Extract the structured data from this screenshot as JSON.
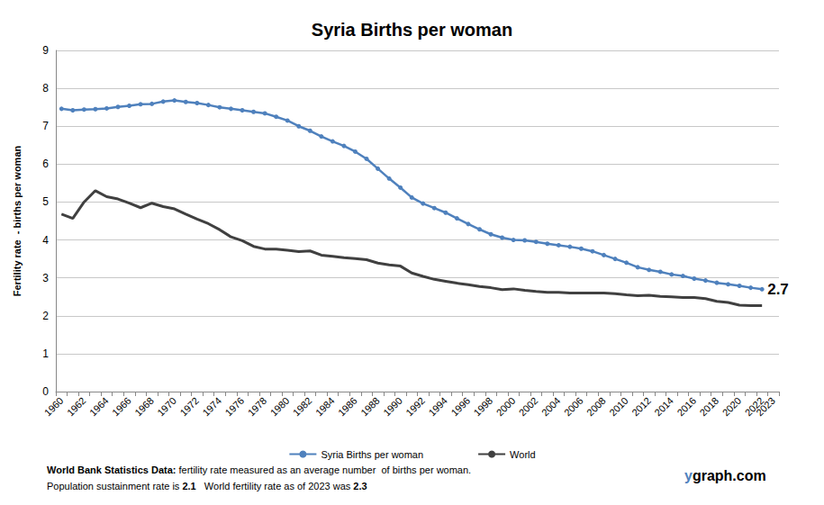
{
  "chart_data": {
    "type": "line",
    "title": "Syria Births per woman",
    "y_label": "Fertility rate  - births per woman",
    "categories": [
      "1960",
      null,
      "1962",
      null,
      "1964",
      null,
      "1966",
      null,
      "1968",
      null,
      "1970",
      null,
      "1972",
      null,
      "1974",
      null,
      "1976",
      null,
      "1978",
      null,
      "1980",
      null,
      "1982",
      null,
      "1984",
      null,
      "1986",
      null,
      "1988",
      null,
      "1990",
      null,
      "1992",
      null,
      "1994",
      null,
      "1996",
      null,
      "1998",
      null,
      "2000",
      null,
      "2002",
      null,
      "2004",
      null,
      "2006",
      null,
      "2008",
      null,
      "2010",
      null,
      "2012",
      null,
      "2014",
      null,
      "2016",
      null,
      "2018",
      null,
      "2020",
      null,
      "2022",
      "2023"
    ],
    "series": [
      {
        "name": "Syria Births per woman",
        "color": "#4F81BD",
        "marker": "circle",
        "line_style": "solid",
        "values": [
          7.46,
          7.42,
          7.44,
          7.45,
          7.47,
          7.51,
          7.54,
          7.58,
          7.59,
          7.65,
          7.68,
          7.64,
          7.61,
          7.56,
          7.5,
          7.46,
          7.42,
          7.38,
          7.34,
          7.25,
          7.15,
          7.0,
          6.88,
          6.73,
          6.6,
          6.48,
          6.33,
          6.14,
          5.88,
          5.62,
          5.38,
          5.12,
          4.96,
          4.84,
          4.72,
          4.57,
          4.42,
          4.28,
          4.15,
          4.06,
          4.0,
          3.99,
          3.95,
          3.9,
          3.86,
          3.82,
          3.77,
          3.7,
          3.6,
          3.5,
          3.4,
          3.28,
          3.21,
          3.16,
          3.09,
          3.05,
          2.98,
          2.93,
          2.87,
          2.83,
          2.79,
          2.74,
          2.7,
          null
        ]
      },
      {
        "name": "World",
        "color": "#404040",
        "marker": "none",
        "line_style": "solid",
        "values": [
          4.68,
          4.57,
          5.0,
          5.3,
          5.14,
          5.08,
          4.97,
          4.85,
          4.97,
          4.88,
          4.82,
          4.68,
          4.55,
          4.43,
          4.27,
          4.08,
          3.98,
          3.83,
          3.76,
          3.76,
          3.73,
          3.69,
          3.71,
          3.6,
          3.57,
          3.53,
          3.51,
          3.48,
          3.39,
          3.34,
          3.31,
          3.13,
          3.04,
          2.96,
          2.91,
          2.86,
          2.82,
          2.77,
          2.74,
          2.69,
          2.71,
          2.67,
          2.64,
          2.62,
          2.62,
          2.6,
          2.6,
          2.6,
          2.6,
          2.58,
          2.55,
          2.53,
          2.54,
          2.51,
          2.5,
          2.48,
          2.48,
          2.45,
          2.38,
          2.35,
          2.28,
          2.27,
          2.27,
          null
        ]
      }
    ],
    "ylim": [
      0,
      9
    ],
    "yticks": [
      0,
      1,
      2,
      3,
      4,
      5,
      6,
      7,
      8,
      9
    ],
    "grid": true,
    "legend": "bottom",
    "annotations": [
      {
        "text": "2.7",
        "x": "2022",
        "y": 2.7,
        "series": "Syria Births per woman"
      }
    ],
    "notes": [
      "World Bank Statistics Data: fertility rate measured as an average number  of births per woman.",
      "Population sustainment rate is 2.1   World fertility rate as of 2023 was 2.3"
    ],
    "source": "ygraph.com"
  }
}
